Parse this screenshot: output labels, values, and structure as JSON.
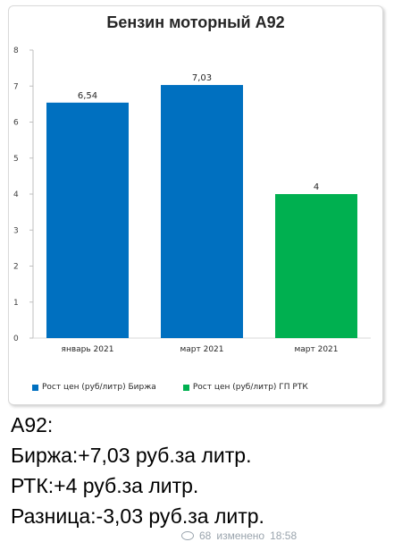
{
  "chart_data": {
    "type": "bar",
    "title": "Бензин моторный А92",
    "categories": [
      "январь 2021",
      "март 2021",
      "март 2021"
    ],
    "values": [
      6.54,
      7.03,
      4
    ],
    "data_labels": [
      "6,54",
      "7,03",
      "4"
    ],
    "bar_series": [
      0,
      0,
      1
    ],
    "series": [
      {
        "name": "Рост цен (руб/литр) Биржа",
        "color": "#0070c0"
      },
      {
        "name": "Рост цен (руб/литр)  ГП РТК",
        "color": "#00b050"
      }
    ],
    "ylim": [
      0,
      8
    ],
    "yticks": [
      "0",
      "1",
      "2",
      "3",
      "4",
      "5",
      "6",
      "7",
      "8"
    ],
    "grid": false,
    "legend_position": "bottom"
  },
  "message": {
    "lines": [
      "А92:",
      "Биржа:+7,03 руб.за литр.",
      "РТК:+4 руб.за литр.",
      "Разница:-3,03 руб.за литр."
    ]
  },
  "meta": {
    "views": "68",
    "author": "изменено",
    "time": "18:58"
  }
}
